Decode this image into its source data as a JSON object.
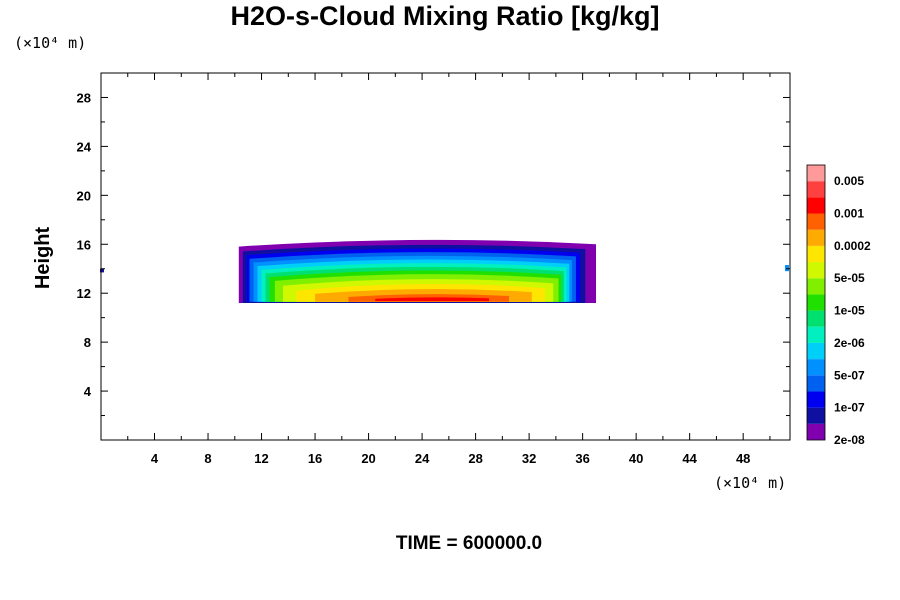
{
  "chart_data": {
    "type": "heatmap",
    "title": "H2O-s-Cloud Mixing Ratio [kg/kg]",
    "xlabel": "",
    "ylabel": "Height",
    "x_unit_label": "(×10⁴ m)",
    "y_unit_label": "(×10⁴ m)",
    "xlim": [
      0,
      51.5
    ],
    "ylim": [
      0,
      30
    ],
    "x_ticks": [
      4,
      8,
      12,
      16,
      20,
      24,
      28,
      32,
      36,
      40,
      44,
      48
    ],
    "y_ticks": [
      4,
      8,
      12,
      16,
      20,
      24,
      28
    ],
    "colorbar_labels": [
      "0.005",
      "0.001",
      "0.0002",
      "5e-05",
      "1e-05",
      "2e-06",
      "5e-07",
      "1e-07",
      "2e-08"
    ],
    "colorbar_colors": [
      "#8000b0",
      "#1010a0",
      "#0000f0",
      "#0060f0",
      "#0090ff",
      "#00d0f8",
      "#00f0c0",
      "#00e070",
      "#20e000",
      "#80f000",
      "#d0f800",
      "#ffe600",
      "#ffaa00",
      "#ff6000",
      "#ff0000",
      "#ff4040",
      "#ff9a9a"
    ],
    "cloud_layers": [
      {
        "level": 0,
        "x_start": 10.3,
        "x_end": 37.0,
        "y_bottom": 11.2,
        "y_top": 16.3
      },
      {
        "level": 1,
        "x_start": 10.6,
        "x_end": 36.2,
        "y_bottom": 11.2,
        "y_top": 15.9
      },
      {
        "level": 2,
        "x_start": 10.9,
        "x_end": 35.8,
        "y_bottom": 11.3,
        "y_top": 15.6
      },
      {
        "level": 3,
        "x_start": 11.1,
        "x_end": 35.5,
        "y_bottom": 11.3,
        "y_top": 15.3
      },
      {
        "level": 4,
        "x_start": 11.4,
        "x_end": 35.2,
        "y_bottom": 11.3,
        "y_top": 15.0
      },
      {
        "level": 5,
        "x_start": 11.7,
        "x_end": 35.0,
        "y_bottom": 11.3,
        "y_top": 14.7
      },
      {
        "level": 6,
        "x_start": 12.0,
        "x_end": 34.8,
        "y_bottom": 11.3,
        "y_top": 14.4
      },
      {
        "level": 7,
        "x_start": 12.3,
        "x_end": 34.6,
        "y_bottom": 11.3,
        "y_top": 14.1
      },
      {
        "level": 8,
        "x_start": 12.6,
        "x_end": 34.4,
        "y_bottom": 11.3,
        "y_top": 13.8
      },
      {
        "level": 9,
        "x_start": 13.0,
        "x_end": 34.2,
        "y_bottom": 11.3,
        "y_top": 13.5
      },
      {
        "level": 10,
        "x_start": 13.6,
        "x_end": 33.8,
        "y_bottom": 11.3,
        "y_top": 13.1
      },
      {
        "level": 11,
        "x_start": 14.6,
        "x_end": 33.2,
        "y_bottom": 11.3,
        "y_top": 12.7
      },
      {
        "level": 12,
        "x_start": 16.0,
        "x_end": 32.2,
        "y_bottom": 11.3,
        "y_top": 12.3
      },
      {
        "level": 13,
        "x_start": 18.5,
        "x_end": 30.5,
        "y_bottom": 11.3,
        "y_top": 11.9
      },
      {
        "level": 14,
        "x_start": 20.5,
        "x_end": 29.0,
        "y_bottom": 11.35,
        "y_top": 11.65
      }
    ],
    "edge_features": [
      {
        "level": 1,
        "x": 0.0,
        "y_bottom": 13.7,
        "y_top": 14.0
      },
      {
        "level": 4,
        "x": 51.2,
        "y_bottom": 13.8,
        "y_top": 14.3
      }
    ],
    "grid": false
  },
  "footer": {
    "time_label": "TIME = 600000.0"
  }
}
